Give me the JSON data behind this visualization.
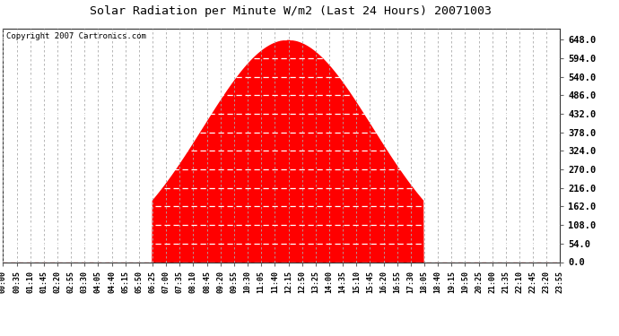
{
  "title": "Solar Radiation per Minute W/m2 (Last 24 Hours) 20071003",
  "copyright_text": "Copyright 2007 Cartronics.com",
  "bg_color": "#ffffff",
  "plot_bg_color": "#ffffff",
  "fill_color": "#ff0000",
  "grid_color_h": "#aaaaaa",
  "grid_color_v": "#aaaaaa",
  "dashed_line_color": "#ff0000",
  "ytick_labels": [
    "0.0",
    "54.0",
    "108.0",
    "162.0",
    "216.0",
    "270.0",
    "324.0",
    "378.0",
    "432.0",
    "486.0",
    "540.0",
    "594.0",
    "648.0"
  ],
  "ytick_values": [
    0,
    54,
    108,
    162,
    216,
    270,
    324,
    378,
    432,
    486,
    540,
    594,
    648
  ],
  "ylim": [
    0,
    680
  ],
  "peak_value": 648,
  "peak_hour": 12.25,
  "start_hour": 6.4,
  "end_hour": 18.1,
  "sigma_factor": 3.2,
  "x_tick_labels": [
    "00:00",
    "00:35",
    "01:10",
    "01:45",
    "02:20",
    "02:55",
    "03:30",
    "04:05",
    "04:40",
    "05:15",
    "05:50",
    "06:25",
    "07:00",
    "07:35",
    "08:10",
    "08:45",
    "09:20",
    "09:55",
    "10:30",
    "11:05",
    "11:40",
    "12:15",
    "12:50",
    "13:25",
    "14:00",
    "14:35",
    "15:10",
    "15:45",
    "16:20",
    "16:55",
    "17:30",
    "18:05",
    "18:40",
    "19:15",
    "19:50",
    "20:25",
    "21:00",
    "21:35",
    "22:10",
    "22:45",
    "23:20",
    "23:55"
  ]
}
